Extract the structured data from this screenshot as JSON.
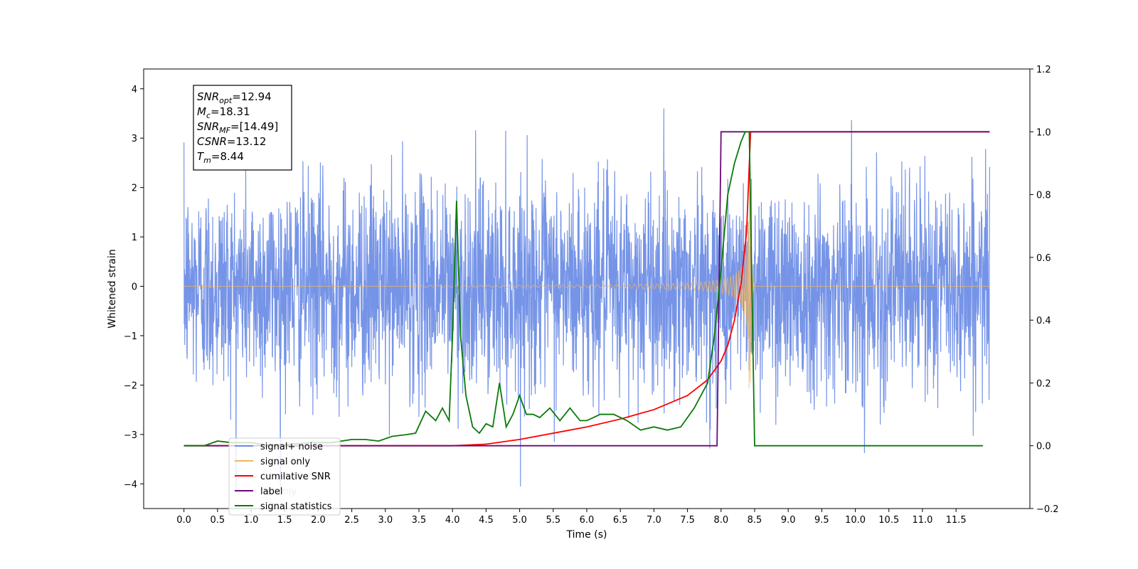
{
  "chart_data": {
    "type": "line",
    "title": "",
    "xlabel": "Time (s)",
    "ylabel": "Whitened strain",
    "y2label": "",
    "xlim": [
      -0.6,
      12.6
    ],
    "ylim": [
      -4.5,
      4.4
    ],
    "y2lim": [
      -0.2,
      1.2
    ],
    "x_ticks": [
      0.0,
      0.5,
      1.0,
      1.5,
      2.0,
      2.5,
      3.0,
      3.5,
      4.0,
      4.5,
      5.0,
      5.5,
      6.0,
      6.5,
      7.0,
      7.5,
      8.0,
      8.5,
      9.0,
      9.5,
      10.0,
      10.5,
      11.0,
      11.5
    ],
    "x_tick_labels": [
      "0.0",
      "0.5",
      "1.0",
      "1.5",
      "2.0",
      "2.5",
      "3.0",
      "3.5",
      "4.0",
      "4.5",
      "5.0",
      "5.5",
      "6.0",
      "6.5",
      "7.0",
      "7.5",
      "8.0",
      "8.5",
      "9.0",
      "9.5",
      "10.0",
      "10.5",
      "11.0",
      "11.5"
    ],
    "y_ticks": [
      4,
      3,
      2,
      1,
      0,
      -1,
      -2,
      -3,
      -4
    ],
    "y_tick_labels": [
      "4",
      "3",
      "2",
      "1",
      "0",
      "−1",
      "−2",
      "−3",
      "−4"
    ],
    "y2_ticks": [
      1.2,
      1.0,
      0.8,
      0.6,
      0.4,
      0.2,
      0.0,
      -0.2
    ],
    "y2_tick_labels": [
      "1.2",
      "1.0",
      "0.8",
      "0.6",
      "0.4",
      "0.2",
      "0.0",
      "−0.2"
    ],
    "grid": false,
    "legend_position": "bottom-left",
    "noise": {
      "t_start": 0.0,
      "t_end": 12.0,
      "core_amplitude": 1.9,
      "max_peak": 4.0,
      "min_trough": -4.1
    },
    "chirp": {
      "t_start": 3.5,
      "t_merger": 8.44,
      "t_end": 8.5,
      "max_amplitude": 2.3
    },
    "series": [
      {
        "name": "signal+ noise",
        "axis": "left",
        "color": "#6f8ee6",
        "kind": "noise"
      },
      {
        "name": "signal only",
        "axis": "left",
        "color": "#f5b55a",
        "kind": "chirp"
      },
      {
        "name": "cumilative SNR",
        "axis": "right",
        "color": "#ff0000",
        "x": [
          0.0,
          4.0,
          4.5,
          5.0,
          5.5,
          6.0,
          6.5,
          7.0,
          7.5,
          7.8,
          8.0,
          8.1,
          8.2,
          8.3,
          8.38,
          8.44,
          8.5,
          9.0,
          10.0,
          11.0,
          12.0
        ],
        "values": [
          0.0,
          0.0,
          0.005,
          0.02,
          0.04,
          0.06,
          0.085,
          0.115,
          0.16,
          0.21,
          0.27,
          0.32,
          0.4,
          0.52,
          0.68,
          1.0,
          1.0,
          1.0,
          1.0,
          1.0,
          1.0
        ]
      },
      {
        "name": "label",
        "axis": "right",
        "color": "#6a0a78",
        "x": [
          0.0,
          7.94,
          8.0,
          8.5,
          8.52,
          12.0
        ],
        "values": [
          0.0,
          0.0,
          1.0,
          1.0,
          1.0,
          1.0
        ]
      },
      {
        "name": "signal statistics",
        "axis": "right",
        "color": "#0a7a0a",
        "x": [
          0.0,
          0.3,
          0.5,
          0.7,
          1.0,
          1.3,
          1.6,
          1.9,
          2.2,
          2.5,
          2.7,
          2.9,
          3.1,
          3.3,
          3.45,
          3.6,
          3.75,
          3.85,
          3.95,
          4.0,
          4.06,
          4.12,
          4.2,
          4.3,
          4.4,
          4.5,
          4.6,
          4.7,
          4.8,
          4.9,
          5.0,
          5.1,
          5.2,
          5.3,
          5.45,
          5.6,
          5.75,
          5.9,
          6.0,
          6.2,
          6.4,
          6.6,
          6.8,
          7.0,
          7.2,
          7.4,
          7.6,
          7.8,
          7.9,
          8.0,
          8.1,
          8.2,
          8.3,
          8.36,
          8.42,
          8.5,
          9.0,
          10.0,
          11.0,
          11.9
        ],
        "values": [
          0.0,
          0.0,
          0.015,
          0.01,
          0.01,
          0.0,
          0.005,
          0.01,
          0.01,
          0.02,
          0.02,
          0.015,
          0.03,
          0.035,
          0.04,
          0.11,
          0.08,
          0.12,
          0.08,
          0.35,
          0.78,
          0.35,
          0.16,
          0.06,
          0.04,
          0.07,
          0.06,
          0.2,
          0.06,
          0.1,
          0.16,
          0.1,
          0.1,
          0.09,
          0.12,
          0.08,
          0.12,
          0.08,
          0.08,
          0.1,
          0.1,
          0.08,
          0.05,
          0.06,
          0.05,
          0.06,
          0.12,
          0.2,
          0.35,
          0.56,
          0.8,
          0.9,
          0.97,
          1.0,
          1.0,
          0.0,
          0.0,
          0.0,
          0.0,
          0.0
        ]
      }
    ],
    "annotation": [
      {
        "main": "SNR",
        "sub": "opt",
        "value": "=12.94"
      },
      {
        "main": "M",
        "sub": "c",
        "value": "=18.31"
      },
      {
        "main": "SNR",
        "sub": "MF",
        "value": "=[14.49]"
      },
      {
        "main": "CSNR",
        "sub": "",
        "value": "=13.12"
      },
      {
        "main": "T",
        "sub": "m",
        "value": "=8.44"
      }
    ],
    "legend": [
      {
        "label": "signal+ noise",
        "color": "#6f8ee6"
      },
      {
        "label": "signal only",
        "color": "#f5b55a"
      },
      {
        "label": "cumilative SNR",
        "color": "#ff0000"
      },
      {
        "label": "label",
        "color": "#6a0a78"
      },
      {
        "label": "signal statistics",
        "color": "#0a7a0a"
      }
    ],
    "legend_ghost_text": "al only"
  }
}
